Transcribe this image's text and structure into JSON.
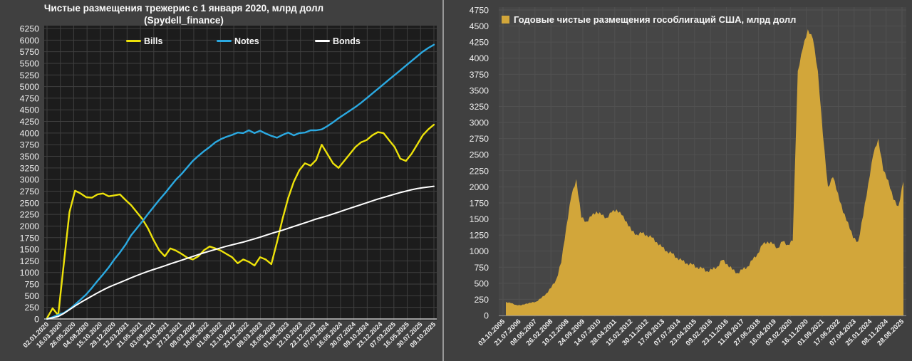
{
  "colors": {
    "background": "#404040",
    "left_plot_bg": "#1C1C1C",
    "left_grid": "#3F3F3F",
    "right_plot_bg": "#464646",
    "right_grid": "#515151",
    "axis_text": "#EFEFEF",
    "divider": "#989898",
    "axis_line_left": "#C9C9C9",
    "axis_line_right": "#8A8A8A"
  },
  "chart_data": [
    {
      "type": "line",
      "title": "Чистые размещения трежерис с 1 января 2020, млрд долл",
      "subtitle": "(Spydell_finance)",
      "ylim": [
        0,
        6250
      ],
      "ystep": 250,
      "grid": true,
      "legend_position": "top-inside",
      "x_labels": [
        "02.01.2020",
        "16.03.2020",
        "26.05.2020",
        "04.08.2020",
        "15.10.2020",
        "29.12.2020",
        "12.03.2021",
        "21.05.2021",
        "03.08.2021",
        "14.10.2021",
        "27.12.2021",
        "09.03.2022",
        "18.05.2022",
        "01.08.2022",
        "12.10.2022",
        "23.12.2022",
        "09.03.2023",
        "18.05.2023",
        "01.08.2023",
        "12.10.2023",
        "22.12.2023",
        "07.03.2024",
        "16.05.2024",
        "30.07.2024",
        "09.10.2024",
        "23.12.2024",
        "07.03.2025",
        "16.05.2025",
        "30.07.2025",
        "09.10.2025"
      ],
      "series": [
        {
          "name": "Bills",
          "color": "#EDE20A",
          "values": [
            20,
            230,
            80,
            1200,
            2300,
            2760,
            2700,
            2620,
            2610,
            2680,
            2700,
            2640,
            2660,
            2680,
            2560,
            2450,
            2300,
            2150,
            1950,
            1700,
            1480,
            1350,
            1520,
            1470,
            1400,
            1320,
            1280,
            1350,
            1480,
            1560,
            1520,
            1470,
            1400,
            1330,
            1200,
            1280,
            1230,
            1150,
            1330,
            1280,
            1180,
            1650,
            2150,
            2600,
            2950,
            3200,
            3350,
            3300,
            3420,
            3750,
            3550,
            3350,
            3250,
            3400,
            3550,
            3700,
            3800,
            3850,
            3950,
            4020,
            4000,
            3850,
            3700,
            3450,
            3400,
            3550,
            3750,
            3950,
            4080,
            4180
          ]
        },
        {
          "name": "Notes",
          "color": "#2BA9E1",
          "values": [
            0,
            40,
            90,
            130,
            210,
            310,
            420,
            530,
            670,
            820,
            960,
            1110,
            1280,
            1430,
            1600,
            1800,
            1950,
            2100,
            2260,
            2410,
            2560,
            2700,
            2850,
            3000,
            3120,
            3260,
            3400,
            3510,
            3610,
            3700,
            3800,
            3870,
            3920,
            3960,
            4010,
            4000,
            4060,
            4000,
            4050,
            3990,
            3940,
            3900,
            3960,
            4010,
            3950,
            4000,
            4010,
            4060,
            4060,
            4080,
            4150,
            4230,
            4320,
            4400,
            4480,
            4560,
            4650,
            4750,
            4850,
            4950,
            5050,
            5150,
            5250,
            5350,
            5450,
            5550,
            5650,
            5750,
            5830,
            5900
          ]
        },
        {
          "name": "Bonds",
          "color": "#FFFFFF",
          "values": [
            0,
            25,
            55,
            120,
            200,
            280,
            355,
            425,
            495,
            560,
            625,
            685,
            735,
            785,
            835,
            885,
            935,
            980,
            1025,
            1065,
            1105,
            1145,
            1185,
            1225,
            1265,
            1305,
            1345,
            1385,
            1425,
            1460,
            1495,
            1530,
            1565,
            1595,
            1625,
            1655,
            1690,
            1725,
            1760,
            1800,
            1840,
            1875,
            1910,
            1950,
            1990,
            2030,
            2070,
            2110,
            2150,
            2185,
            2220,
            2260,
            2300,
            2340,
            2380,
            2420,
            2460,
            2500,
            2540,
            2580,
            2615,
            2650,
            2685,
            2720,
            2750,
            2780,
            2805,
            2825,
            2840,
            2855
          ]
        }
      ]
    },
    {
      "type": "area",
      "legend_label": "Годовые чистые размещения гособлигаций США, млрд долл",
      "color": "#D2A63A",
      "ylim": [
        0,
        4750
      ],
      "ystep": 250,
      "grid": true,
      "legend_position": "top-left-inside",
      "x_labels": [
        "03.10.2005",
        "21.07.2006",
        "08.05.2007",
        "26.02.2008",
        "10.12.2008",
        "24.09.2009",
        "14.07.2010",
        "28.04.2011",
        "15.02.2012",
        "30.11.2012",
        "17.09.2013",
        "07.07.2014",
        "23.04.2015",
        "09.02.2016",
        "23.11.2016",
        "11.09.2017",
        "27.06.2018",
        "16.04.2019",
        "03.02.2020",
        "16.11.2020",
        "01.09.2021",
        "17.06.2022",
        "07.04.2023",
        "25.01.2024",
        "08.11.2024",
        "28.08.2025"
      ],
      "values": [
        210,
        190,
        165,
        155,
        185,
        195,
        215,
        265,
        340,
        430,
        560,
        820,
        1380,
        1850,
        2120,
        1520,
        1460,
        1540,
        1620,
        1560,
        1520,
        1600,
        1650,
        1560,
        1460,
        1310,
        1260,
        1280,
        1250,
        1210,
        1140,
        1060,
        1000,
        960,
        900,
        850,
        810,
        790,
        750,
        730,
        690,
        710,
        760,
        860,
        800,
        710,
        660,
        710,
        760,
        860,
        960,
        1100,
        1150,
        1110,
        1050,
        1150,
        1100,
        1160,
        3800,
        4150,
        4450,
        4300,
        3800,
        2800,
        2000,
        2150,
        1900,
        1600,
        1450,
        1200,
        1150,
        1550,
        2050,
        2500,
        2750,
        2250,
        2100,
        1800,
        1700,
        2080
      ]
    }
  ]
}
